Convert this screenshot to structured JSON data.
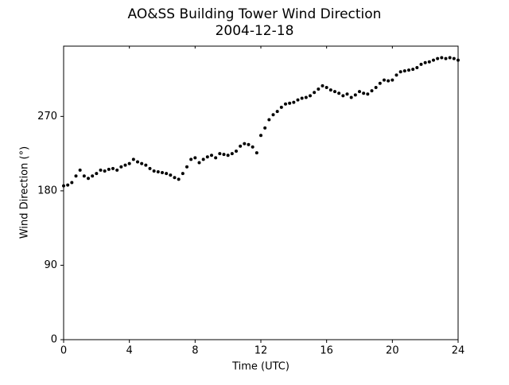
{
  "chart_data": {
    "type": "scatter",
    "title": "AO&SS Building Tower Wind Direction",
    "subtitle": "2004-12-18",
    "x_label": "Time (UTC)",
    "y_label": "Wind Direction (°)",
    "color": "#000000",
    "xlim": [
      0,
      24
    ],
    "xticks": [
      0,
      4,
      8,
      12,
      16,
      20,
      24
    ],
    "ylim": [
      0,
      355
    ],
    "yticks": [
      0,
      90,
      180,
      270
    ],
    "x": [
      0,
      0.25,
      0.5,
      0.75,
      1,
      1.25,
      1.5,
      1.75,
      2,
      2.25,
      2.5,
      2.75,
      3,
      3.25,
      3.5,
      3.75,
      4,
      4.25,
      4.5,
      4.75,
      5,
      5.25,
      5.5,
      5.75,
      6,
      6.25,
      6.5,
      6.75,
      7,
      7.25,
      7.5,
      7.75,
      8,
      8.25,
      8.5,
      8.75,
      9,
      9.25,
      9.5,
      9.75,
      10,
      10.25,
      10.5,
      10.75,
      11,
      11.25,
      11.5,
      11.75,
      12,
      12.25,
      12.5,
      12.75,
      13,
      13.25,
      13.5,
      13.75,
      14,
      14.25,
      14.5,
      14.75,
      15,
      15.25,
      15.5,
      15.75,
      16,
      16.25,
      16.5,
      16.75,
      17,
      17.25,
      17.5,
      17.75,
      18,
      18.25,
      18.5,
      18.75,
      19,
      19.25,
      19.5,
      19.75,
      20,
      20.25,
      20.5,
      20.75,
      21,
      21.25,
      21.5,
      21.75,
      22,
      22.25,
      22.5,
      22.75,
      23,
      23.25,
      23.5,
      23.75,
      24
    ],
    "values": [
      186,
      187,
      190,
      198,
      205,
      198,
      195,
      198,
      201,
      205,
      204,
      206,
      207,
      205,
      209,
      211,
      213,
      218,
      215,
      213,
      211,
      207,
      204,
      203,
      202,
      201,
      199,
      196,
      194,
      201,
      209,
      218,
      220,
      214,
      218,
      221,
      223,
      220,
      225,
      224,
      223,
      225,
      228,
      234,
      237,
      236,
      233,
      226,
      247,
      256,
      266,
      272,
      276,
      281,
      285,
      286,
      287,
      290,
      292,
      293,
      295,
      299,
      303,
      307,
      305,
      302,
      300,
      298,
      295,
      297,
      293,
      296,
      300,
      298,
      297,
      301,
      305,
      310,
      314,
      313,
      314,
      320,
      324,
      325,
      326,
      327,
      329,
      333,
      335,
      336,
      338,
      340,
      341,
      340,
      341,
      340,
      338
    ]
  }
}
